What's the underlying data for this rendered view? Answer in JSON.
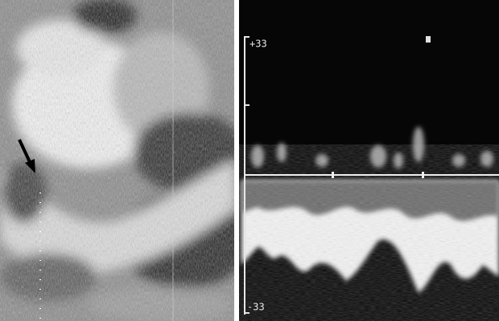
{
  "doppler_scale": {
    "top_label": "+33",
    "bottom_label": "-33"
  }
}
